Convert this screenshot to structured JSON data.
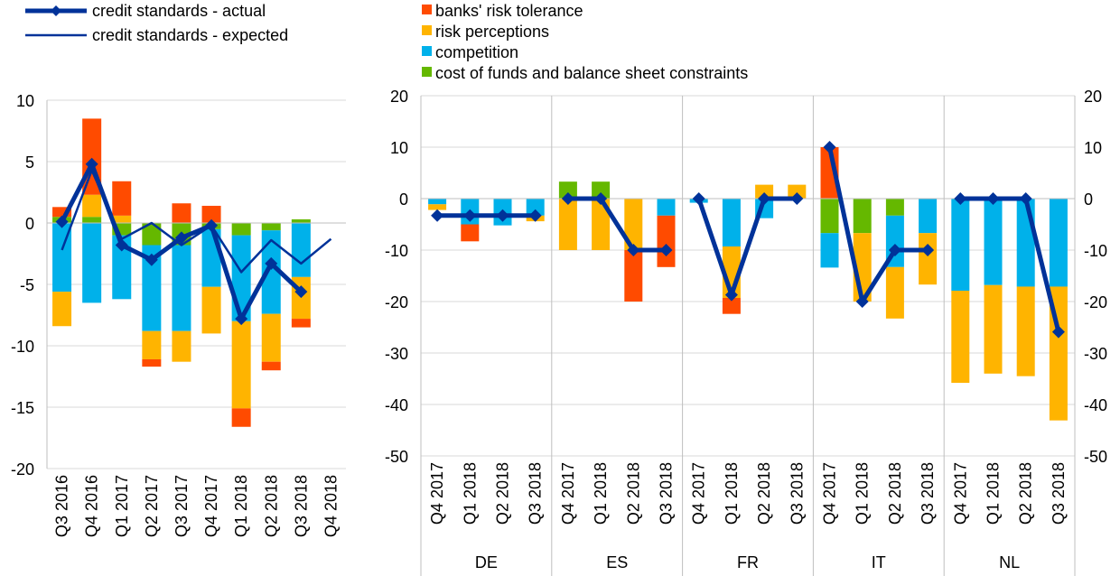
{
  "colors": {
    "banks_risk_tolerance": "#FF4B00",
    "risk_perceptions": "#FFB400",
    "competition": "#00B1EA",
    "cost_of_funds": "#65B800",
    "credit_standards": "#003299",
    "gridline": "#D9D9D9",
    "axis": "#BFBFBF"
  },
  "legend": {
    "lines": [
      {
        "key": "actual",
        "label": "credit standards - actual",
        "marker": "diamond"
      },
      {
        "key": "expected",
        "label": "credit standards - expected",
        "marker": "none"
      }
    ],
    "factors": [
      {
        "key": "banks_risk_tolerance",
        "label": "banks' risk tolerance"
      },
      {
        "key": "risk_perceptions",
        "label": "risk perceptions"
      },
      {
        "key": "competition",
        "label": "competition"
      },
      {
        "key": "cost_of_funds",
        "label": "cost of funds and balance sheet constraints"
      }
    ]
  },
  "chart_data": [
    {
      "type": "bar",
      "subtype": "stacked-bar-with-lines",
      "panel": "euro-area",
      "ylim": [
        -20,
        10
      ],
      "yticks": [
        10,
        5,
        0,
        -5,
        -10,
        -15,
        -20
      ],
      "grid": true,
      "categories": [
        "Q3 2016",
        "Q4 2016",
        "Q1 2017",
        "Q2 2017",
        "Q3 2017",
        "Q4 2017",
        "Q1 2018",
        "Q2 2018",
        "Q3 2018",
        "Q4 2018"
      ],
      "series": [
        {
          "name": "banks' risk tolerance",
          "key": "banks_risk_tolerance",
          "values": [
            0.8,
            6.2,
            2.8,
            -0.6,
            1.6,
            1.4,
            -1.5,
            -0.7,
            -0.7,
            null
          ]
        },
        {
          "name": "risk perceptions",
          "key": "risk_perceptions",
          "values": [
            -2.8,
            1.8,
            0.6,
            -2.3,
            -2.5,
            -3.8,
            -7.1,
            -3.9,
            -3.4,
            null
          ]
        },
        {
          "name": "competition",
          "key": "competition",
          "values": [
            -5.6,
            -6.5,
            -5.2,
            -7,
            -7,
            -4.7,
            -7,
            -6.8,
            -4.4,
            null
          ]
        },
        {
          "name": "cost of funds and balance sheet constraints",
          "key": "cost_of_funds",
          "values": [
            0.5,
            0.5,
            -1,
            -1.8,
            -1.8,
            -0.5,
            -1,
            -0.6,
            0.3,
            null
          ]
        }
      ],
      "lines": [
        {
          "name": "credit standards - actual",
          "key": "actual",
          "values": [
            0.1,
            4.8,
            -1.8,
            -3,
            -1.2,
            -0.2,
            -7.8,
            -3.3,
            -5.6,
            null
          ]
        },
        {
          "name": "credit standards - expected",
          "key": "expected",
          "values": [
            -2.2,
            4.3,
            -1.3,
            0,
            -1.8,
            -0.2,
            -4,
            -1.4,
            -3.3,
            -1.3
          ]
        }
      ]
    },
    {
      "type": "bar",
      "subtype": "stacked-bar-with-lines",
      "panel": "countries",
      "ylim": [
        -50,
        20
      ],
      "yticks": [
        20,
        10,
        0,
        -10,
        -20,
        -30,
        -40,
        -50
      ],
      "grid": true,
      "categories": [
        "Q4 2017",
        "Q1 2018",
        "Q2 2018",
        "Q3 2018"
      ],
      "groups": [
        {
          "name": "DE",
          "banks_risk_tolerance": [
            0,
            -3.3,
            0,
            0
          ],
          "risk_perceptions": [
            -1.1,
            0,
            0,
            -1.1
          ],
          "competition": [
            -1.1,
            -5,
            -5.2,
            -3.3
          ],
          "cost_of_funds": [
            0,
            0,
            0,
            0
          ],
          "actual": [
            -3.3,
            -3.3,
            -3.3,
            -3.3
          ]
        },
        {
          "name": "ES",
          "banks_risk_tolerance": [
            0,
            0,
            -10,
            -10
          ],
          "risk_perceptions": [
            -10,
            -10,
            -10,
            0
          ],
          "competition": [
            0,
            0,
            0,
            -3.3
          ],
          "cost_of_funds": [
            3.3,
            3.3,
            0,
            0
          ],
          "actual": [
            0,
            0,
            -10,
            -10
          ]
        },
        {
          "name": "FR",
          "banks_risk_tolerance": [
            0,
            -3.1,
            0,
            0
          ],
          "risk_perceptions": [
            0,
            -10,
            2.7,
            2.7
          ],
          "competition": [
            -0.8,
            -9.3,
            -3.8,
            0
          ],
          "cost_of_funds": [
            0,
            0,
            0,
            0
          ],
          "actual": [
            0,
            -18.7,
            0,
            0
          ]
        },
        {
          "name": "IT",
          "banks_risk_tolerance": [
            10,
            0,
            0,
            0
          ],
          "risk_perceptions": [
            0,
            -13.3,
            -10,
            -10
          ],
          "competition": [
            -6.7,
            0,
            -10,
            -6.7
          ],
          "cost_of_funds": [
            -6.7,
            -6.7,
            -3.3,
            0
          ],
          "actual": [
            10,
            -20,
            -10,
            -10
          ]
        },
        {
          "name": "NL",
          "banks_risk_tolerance": [
            0,
            0,
            0,
            0
          ],
          "risk_perceptions": [
            -17.9,
            -17.2,
            -17.4,
            -26
          ],
          "competition": [
            -17.9,
            -16.8,
            -17.1,
            -17.1
          ],
          "cost_of_funds": [
            0,
            0,
            0,
            0
          ],
          "actual": [
            0,
            0,
            0,
            -25.9
          ]
        }
      ]
    }
  ]
}
